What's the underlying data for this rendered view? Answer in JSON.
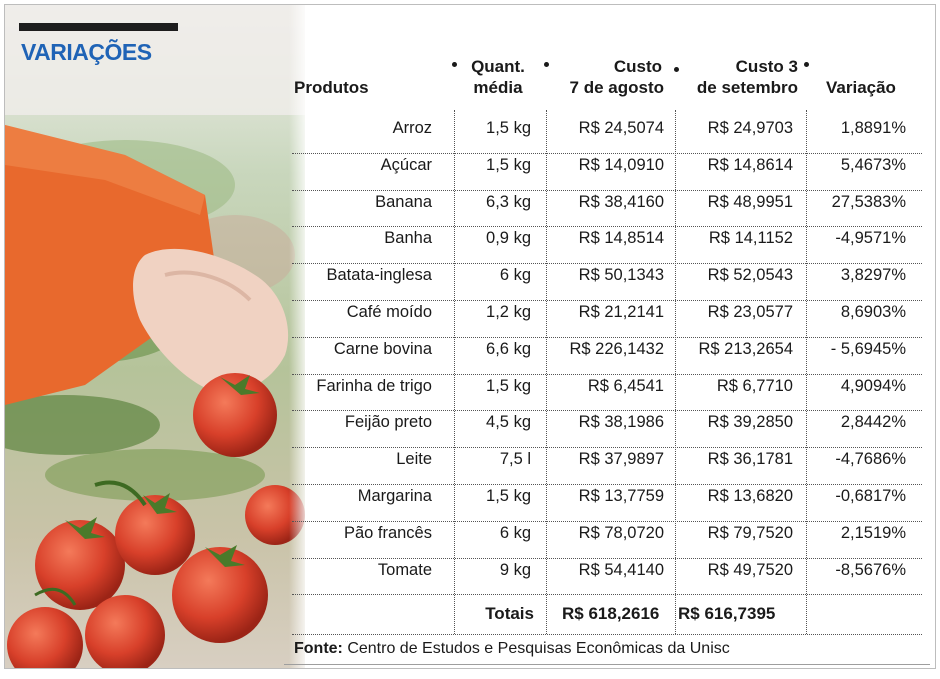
{
  "title": "VARIAÇÕES",
  "headers": {
    "produtos": "Produtos",
    "quant_l1": "Quant.",
    "quant_l2": "média",
    "custo1_l1": "Custo",
    "custo1_l2": "7 de agosto",
    "custo2_l1": "Custo 3",
    "custo2_l2": "de setembro",
    "variacao": "Variação"
  },
  "rows": [
    {
      "produto": "Arroz",
      "quant": "1,5 kg",
      "custo_ago": "R$ 24,5074",
      "custo_set": "R$ 24,9703",
      "variacao": "1,8891%"
    },
    {
      "produto": "Açúcar",
      "quant": "1,5 kg",
      "custo_ago": "R$ 14,0910",
      "custo_set": "R$ 14,8614",
      "variacao": "5,4673%"
    },
    {
      "produto": "Banana",
      "quant": "6,3 kg",
      "custo_ago": "R$ 38,4160",
      "custo_set": "R$ 48,9951",
      "variacao": "27,5383%"
    },
    {
      "produto": "Banha",
      "quant": "0,9 kg",
      "custo_ago": "R$ 14,8514",
      "custo_set": "R$ 14,1152",
      "variacao": "-4,9571%"
    },
    {
      "produto": "Batata-inglesa",
      "quant": "6 kg",
      "custo_ago": "R$ 50,1343",
      "custo_set": "R$ 52,0543",
      "variacao": "3,8297%"
    },
    {
      "produto": "Café moído",
      "quant": "1,2 kg",
      "custo_ago": "R$ 21,2141",
      "custo_set": "R$ 23,0577",
      "variacao": "8,6903%"
    },
    {
      "produto": "Carne bovina",
      "quant": "6,6 kg",
      "custo_ago": "R$ 226,1432",
      "custo_set": "R$ 213,2654",
      "variacao": "- 5,6945%"
    },
    {
      "produto": "Farinha de trigo",
      "quant": "1,5 kg",
      "custo_ago": "R$ 6,4541",
      "custo_set": "R$ 6,7710",
      "variacao": "4,9094%"
    },
    {
      "produto": "Feijão preto",
      "quant": "4,5 kg",
      "custo_ago": "R$ 38,1986",
      "custo_set": "R$ 39,2850",
      "variacao": "2,8442%"
    },
    {
      "produto": "Leite",
      "quant": "7,5 l",
      "custo_ago": "R$ 37,9897",
      "custo_set": "R$ 36,1781",
      "variacao": "-4,7686%"
    },
    {
      "produto": "Margarina",
      "quant": "1,5 kg",
      "custo_ago": "R$ 13,7759",
      "custo_set": "R$ 13,6820",
      "variacao": "-0,6817%"
    },
    {
      "produto": "Pão francês",
      "quant": "6 kg",
      "custo_ago": "R$ 78,0720",
      "custo_set": "R$ 79,7520",
      "variacao": "2,1519%"
    },
    {
      "produto": "Tomate",
      "quant": "9 kg",
      "custo_ago": "R$ 54,4140",
      "custo_set": "R$ 49,7520",
      "variacao": "-8,5676%"
    }
  ],
  "totals": {
    "label": "Totais",
    "custo_ago": "R$ 618,2616",
    "custo_set": "R$ 616,7395"
  },
  "source": {
    "label": "Fonte:",
    "text": "Centro de Estudos e Pesquisas Econômicas da Unisc"
  },
  "colors": {
    "title": "#1f63b6",
    "sleeve": "#e8692d",
    "tomato": "#d8402a"
  }
}
